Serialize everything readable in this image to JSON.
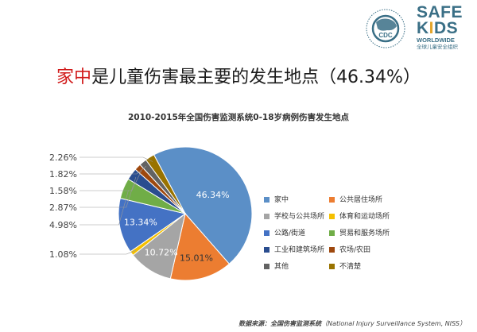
{
  "headline": {
    "prefix_red": "家中",
    "rest": "是儿童伤害最主要的发生地点（46.34%）"
  },
  "logos": {
    "safe_kids_line1": "SAFE",
    "safe_kids_line2_a": "K",
    "safe_kids_line2_b": "I",
    "safe_kids_line2_c": "DS",
    "safe_kids_line3": "WORLDWIDE",
    "safe_kids_line4": "全球儿童安全组织",
    "cdc_text": "CDC"
  },
  "source": {
    "label": "数据来源：全国伤害监测系统",
    "en": "（National Injury Surveillance System, NISS）"
  },
  "chart_data": {
    "type": "pie",
    "title": "2010-2015年全国伤害监测系统0-18岁病例伤害发生地点",
    "slices": [
      {
        "name": "家中",
        "value": 46.34,
        "color": "#5b8fc7",
        "label": "46.34%"
      },
      {
        "name": "公共居住场所",
        "value": 15.01,
        "color": "#ec7d31",
        "label": "15.01%"
      },
      {
        "name": "学校与公共场所",
        "value": 10.72,
        "color": "#a5a5a5",
        "label": "10.72%"
      },
      {
        "name": "体育和运动场所",
        "value": 1.08,
        "color": "#f5c000",
        "label": "1.08%"
      },
      {
        "name": "公路/街道",
        "value": 13.34,
        "color": "#4472c4",
        "label": "13.34%"
      },
      {
        "name": "贸易和服务场所",
        "value": 4.98,
        "color": "#70ad47",
        "label": "4.98%"
      },
      {
        "name": "工业和建筑场所",
        "value": 2.87,
        "color": "#2a4d8f",
        "label": "2.87%"
      },
      {
        "name": "农场/农田",
        "value": 1.58,
        "color": "#9e480e",
        "label": "1.58%"
      },
      {
        "name": "其他",
        "value": 1.82,
        "color": "#636363",
        "label": "1.82%"
      },
      {
        "name": "不清楚",
        "value": 2.26,
        "color": "#997300",
        "label": "2.26%"
      }
    ],
    "legend_placement": "right"
  }
}
